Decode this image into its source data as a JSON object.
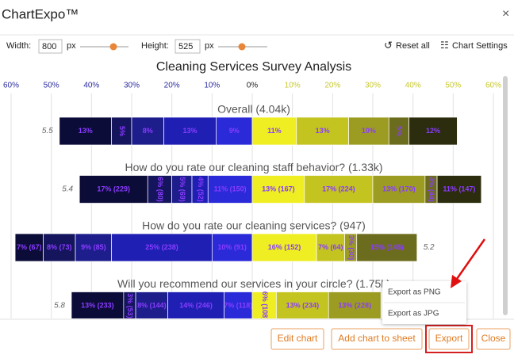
{
  "app_title": "ChartExpo™",
  "toolbar": {
    "width_label": "Width:",
    "width_value": "800",
    "height_label": "Height:",
    "height_value": "525",
    "unit": "px",
    "reset": "Reset all",
    "settings": "Chart Settings"
  },
  "chart_data": {
    "type": "diverging_bar",
    "title": "Cleaning Services Survey Analysis",
    "xlim": [
      -60,
      60
    ],
    "xticks": [
      {
        "value": -60,
        "label": "60%"
      },
      {
        "value": -50,
        "label": "50%"
      },
      {
        "value": -40,
        "label": "40%"
      },
      {
        "value": -30,
        "label": "30%"
      },
      {
        "value": -20,
        "label": "20%"
      },
      {
        "value": -10,
        "label": "10%"
      },
      {
        "value": 0,
        "label": "0%"
      },
      {
        "value": 10,
        "label": "10%"
      },
      {
        "value": 20,
        "label": "20%"
      },
      {
        "value": 30,
        "label": "30%"
      },
      {
        "value": 40,
        "label": "40%"
      },
      {
        "value": 50,
        "label": "50%"
      },
      {
        "value": 60,
        "label": "60%"
      }
    ],
    "grid": true,
    "left_colors": [
      "#0c0c38",
      "#15155e",
      "#1d1d8c",
      "#1f1fb4",
      "#2a2ad8"
    ],
    "right_colors": [
      "#eeee22",
      "#c4c420",
      "#9c9c22",
      "#6c6c1e",
      "#2c2c0e"
    ],
    "rows": [
      {
        "title": "Overall (4.04k)",
        "mean": 5.5,
        "left_values": [
          13,
          5,
          8,
          13,
          9
        ],
        "left_labels": [
          "13%",
          "5%",
          "8%",
          "13%",
          "9%"
        ],
        "right_values": [
          11,
          13,
          10,
          5,
          12
        ],
        "right_labels": [
          "11%",
          "13%",
          "10%",
          "5%",
          "12%"
        ]
      },
      {
        "title": "How do you rate our cleaning staff behavior? (1.33k)",
        "mean": 5.4,
        "left_values": [
          17,
          6,
          5,
          4,
          11
        ],
        "left_labels": [
          "17% (229)",
          "6% (80)",
          "5% (69)",
          "4% (52)",
          "11% (150)"
        ],
        "right_values": [
          13,
          17,
          13,
          3,
          11
        ],
        "right_labels": [
          "13% (167)",
          "17% (224)",
          "13% (170)",
          "3% (44)",
          "11% (147)"
        ]
      },
      {
        "title": "How do you rate our cleaning services? (947)",
        "mean": 5.2,
        "left_values": [
          7,
          8,
          9,
          25,
          10
        ],
        "left_labels": [
          "7% (67)",
          "8% (73)",
          "9% (85)",
          "25% (238)",
          "10% (91)"
        ],
        "right_values": [
          16,
          7,
          3,
          15
        ],
        "right_labels": [
          "16% (152)",
          "7% (64)",
          "3% (30)",
          "15% (148)"
        ]
      },
      {
        "title": "Will you recommend our services in your circle? (1.75k)",
        "mean": 5.8,
        "left_values": [
          13,
          3,
          8,
          14,
          7
        ],
        "left_labels": [
          "13% (233)",
          "3% (53)",
          "8% (144)",
          "14% (246)",
          "7% (118)"
        ],
        "right_values": [
          6,
          13,
          13
        ],
        "right_labels": [
          "6% (108)",
          "13% (234)",
          "13% (228)"
        ]
      }
    ]
  },
  "export_menu": [
    "Export as PNG",
    "Export as JPG"
  ],
  "buttons": [
    "Edit chart",
    "Add chart to sheet",
    "Export",
    "Close"
  ]
}
